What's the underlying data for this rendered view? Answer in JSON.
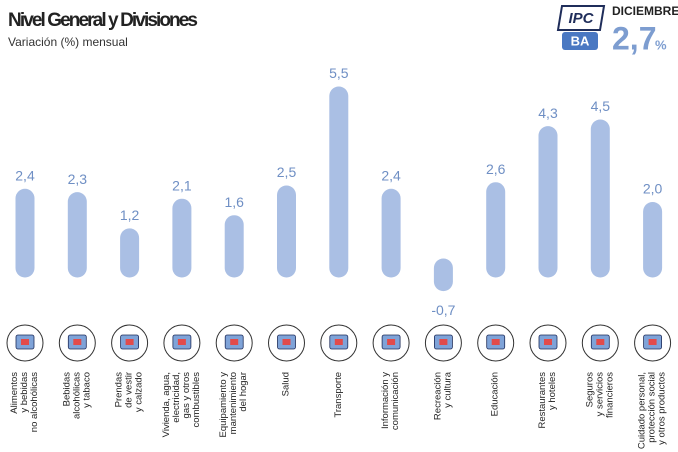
{
  "chart_data": {
    "type": "bar",
    "title": "Nivel General y Divisiones",
    "subtitle": "Variación (%) mensual",
    "logo": [
      "IPC",
      "BA"
    ],
    "headline_month": "DICIEMBRE",
    "headline_value": "2,7",
    "headline_unit": "%",
    "categories": [
      "Alimentos\ny bebidas\nno alcohólicas",
      "Bebidas\nalcohólicas\ny tabaco",
      "Prendas\nde vestir\ny calzado",
      "Vivienda, agua,\nelectricidad,\ngas y otros\ncombustibles",
      "Equipamiento y\nmantenimiento\ndel hogar",
      "Salud",
      "Transporte",
      "Información y\ncomunicación",
      "Recreación\ny cultura",
      "Educación",
      "Restaurantes\ny hoteles",
      "Seguros\ny servicios\nfinancieros",
      "Cuidado personal,\nprotección social\ny otros productos"
    ],
    "values": [
      2.4,
      2.3,
      1.2,
      2.1,
      1.6,
      2.5,
      5.5,
      2.4,
      -0.7,
      2.6,
      4.3,
      4.5,
      2.0
    ],
    "value_labels": [
      "2,4",
      "2,3",
      "1,2",
      "2,1",
      "1,6",
      "2,5",
      "5,5",
      "2,4",
      "-0,7",
      "2,6",
      "4,3",
      "4,5",
      "2,0"
    ],
    "color": "#aabfe4"
  }
}
